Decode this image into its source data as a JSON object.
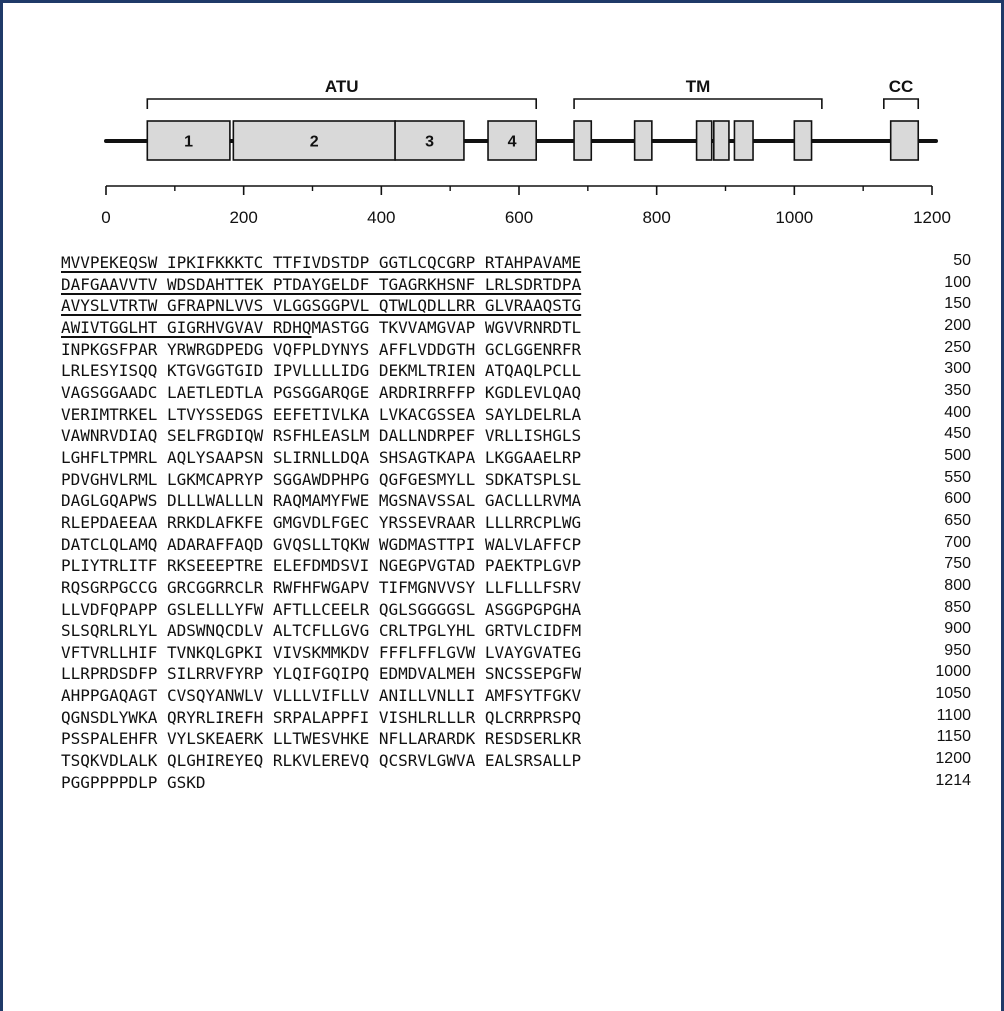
{
  "regions": [
    {
      "label": "ATU",
      "start": 60,
      "end": 625
    },
    {
      "label": "TM",
      "start": 680,
      "end": 1040
    },
    {
      "label": "CC",
      "start": 1130,
      "end": 1180
    }
  ],
  "domains": [
    {
      "label": "1",
      "start": 60,
      "end": 180
    },
    {
      "label": "2",
      "start": 185,
      "end": 420
    },
    {
      "label": "3",
      "start": 420,
      "end": 520
    },
    {
      "label": "4",
      "start": 555,
      "end": 625
    },
    {
      "label": "",
      "start": 680,
      "end": 705
    },
    {
      "label": "",
      "start": 768,
      "end": 793
    },
    {
      "label": "",
      "start": 858,
      "end": 880
    },
    {
      "label": "",
      "start": 883,
      "end": 905
    },
    {
      "label": "",
      "start": 913,
      "end": 940
    },
    {
      "label": "",
      "start": 1000,
      "end": 1025
    },
    {
      "label": "",
      "start": 1140,
      "end": 1180
    }
  ],
  "axis": {
    "min": 0,
    "max": 1200,
    "labels": [
      "0",
      "200",
      "400",
      "600",
      "800",
      "1000",
      "1200"
    ],
    "label_values": [
      0,
      200,
      400,
      600,
      800,
      1000,
      1200
    ],
    "minor_ticks": [
      100,
      300,
      500,
      700,
      900,
      1100
    ]
  },
  "sequence": [
    {
      "text": "MVVPEKEQSW IPKIFKKKTC TTFIVDSTDP GGTLCQCGRP RTAHPAVAME",
      "number": "50",
      "underlined": true
    },
    {
      "text": "DAFGAAVVTV WDSDAHTTEK PTDAYGELDF TGAGRKHSNF LRLSDRTDPA",
      "number": "100",
      "underlined": true
    },
    {
      "text": "AVYSLVTRTW GFRAPNLVVS VLGGSGGPVL QTWLQDLLRR GLVRAAQSTG",
      "number": "150",
      "underlined": true
    },
    {
      "text": "AWIVTGGLHT GIGRHVGVAV RDHQ",
      "rest": "MASTGG TKVVAMGVAP WGVVRNRDTL",
      "number": "200",
      "underlined": true
    },
    {
      "text": "INPKGSFPAR YRWRGDPEDG VQFPLDYNYS AFFLVDDGTH GCLGGENRFR",
      "number": "250"
    },
    {
      "text": "LRLESYISQQ KTGVGGTGID IPVLLLLIDG DEKMLTRIEN ATQAQLPCLL",
      "number": "300"
    },
    {
      "text": "VAGSGGAADC LAETLEDTLA PGSGGARQGE ARDRIRRFFP KGDLEVLQAQ",
      "number": "350"
    },
    {
      "text": "VERIMTRKEL LTVYSSEDGS EEFETIVLKA LVKACGSSEA SAYLDELRLA",
      "number": "400"
    },
    {
      "text": "VAWNRVDIAQ SELFRGDIQW RSFHLEASLM DALLNDRPEF VRLLISHGLS",
      "number": "450"
    },
    {
      "text": "LGHFLTPMRL AQLYSAAPSN SLIRNLLDQA SHSAGTKAPA LKGGAAELRP",
      "number": "500"
    },
    {
      "text": "PDVGHVLRML LGKMCAPRYP SGGAWDPHPG QGFGESMYLL SDKATSPLSL",
      "number": "550"
    },
    {
      "text": "DAGLGQAPWS DLLLWALLLN RAQMAMYFWE MGSNAVSSAL GACLLLRVMA",
      "number": "600"
    },
    {
      "text": "RLEPDAEEAA RRKDLAFKFE GMGVDLFGEC YRSSEVRAAR LLLRRCPLWG",
      "number": "650"
    },
    {
      "text": "DATCLQLAMQ ADARAFFAQD GVQSLLTQKW WGDMASTTPI WALVLAFFCP",
      "number": "700"
    },
    {
      "text": "PLIYTRLITF RKSEEEPTRE ELEFDMDSVI NGEGPVGTAD PAEKTPLGVP",
      "number": "750"
    },
    {
      "text": "RQSGRPGCCG GRCGGRRCLR RWFHFWGAPV TIFMGNVVSY LLFLLLFSRV",
      "number": "800"
    },
    {
      "text": "LLVDFQPAPP GSLELLLYFW AFTLLCEELR QGLSGGGGSL ASGGPGPGHA",
      "number": "850"
    },
    {
      "text": "SLSQRLRLYL ADSWNQCDLV ALTCFLLGVG CRLTPGLYHL GRTVLCIDFM",
      "number": "900"
    },
    {
      "text": "VFTVRLLHIF TVNKQLGPKI VIVSKMMKDV FFFLFFLGVW LVAYGVATEG",
      "number": "950"
    },
    {
      "text": "LLRPRDSDFP SILRRVFYRP YLQIFGQIPQ EDMDVALMEH SNCSSEPGFW",
      "number": "1000"
    },
    {
      "text": "AHPPGAQAGT CVSQYANWLV VLLLVIFLLV ANILLVNLLI AMFSYTFGKV",
      "number": "1050"
    },
    {
      "text": "QGNSDLYWKA QRYRLIREFH SRPALAPPFI VISHLRLLLR QLCRRPRSPQ",
      "number": "1100"
    },
    {
      "text": "PSSPALEHFR VYLSKEAERK LLTWESVHKE NFLLARARDK RESDSERLKR",
      "number": "1150"
    },
    {
      "text": "TSQKVDLALK QLGHIREYEQ RLKVLEREVQ QCSRVLGWVA EALSRSALLP",
      "number": "1200"
    },
    {
      "text": "PGGPPPPDLP GSKD",
      "number": "1214"
    }
  ]
}
